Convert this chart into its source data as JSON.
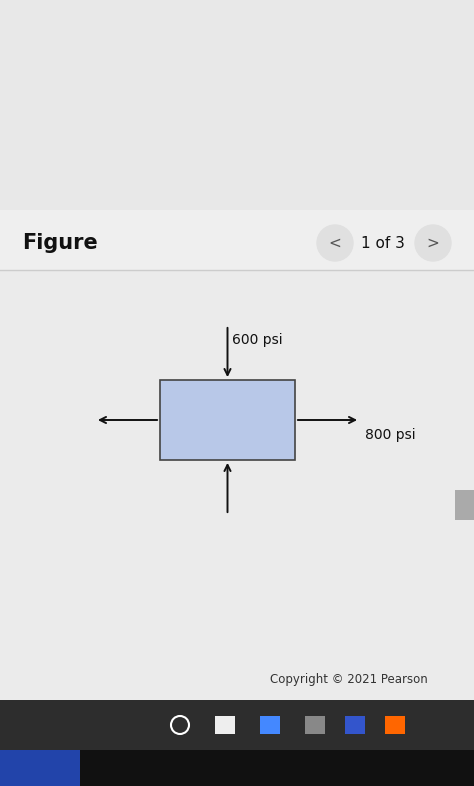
{
  "title": "Figure",
  "nav_text": "1 of 3",
  "bg_top_color": "#e8e8e8",
  "bg_white_color": "#f5f5f5",
  "content_white_color": "#f0f0f0",
  "box_face_color": "#b8c8e8",
  "box_edge_color": "#444444",
  "stress_600_label": "600 psi",
  "stress_800_label": "800 psi",
  "arrow_color": "#111111",
  "label_fontsize": 10,
  "title_fontsize": 15,
  "copyright_text": "Copyright © 2021 Pearson",
  "copyright_fontsize": 8.5,
  "taskbar_color": "#1c1c1c",
  "taskbar2_color": "#2a2a2a",
  "dark_bottom_color": "#0d0d0d",
  "nav_circle_color": "#e0e0e0",
  "separator_color": "#cccccc",
  "figure_bg": "#ebebeb"
}
